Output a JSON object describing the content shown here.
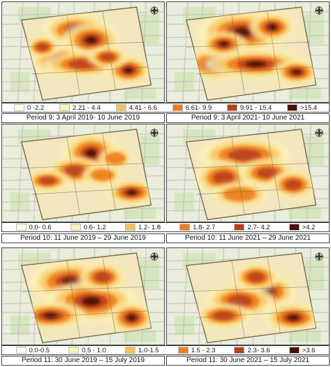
{
  "panels": [
    {
      "caption": "Period 9: 3 April 2019- 10 June 2019",
      "row": 0,
      "col": 0,
      "intensity": 0.9,
      "hotspots": [
        [
          0.46,
          0.28,
          0.12,
          0.09,
          0.95
        ],
        [
          0.55,
          0.38,
          0.1,
          0.1,
          0.85
        ],
        [
          0.35,
          0.58,
          0.1,
          0.08,
          0.8
        ],
        [
          0.5,
          0.62,
          0.14,
          0.07,
          0.75
        ],
        [
          0.78,
          0.68,
          0.08,
          0.08,
          1.0
        ],
        [
          0.25,
          0.45,
          0.06,
          0.06,
          0.6
        ],
        [
          0.65,
          0.55,
          0.07,
          0.06,
          0.7
        ]
      ]
    },
    {
      "caption": "Period 9: 3 April 2021- 10 June 2021",
      "row": 0,
      "col": 1,
      "intensity": 1.0,
      "hotspots": [
        [
          0.47,
          0.3,
          0.16,
          0.12,
          1.0
        ],
        [
          0.3,
          0.62,
          0.12,
          0.09,
          0.95
        ],
        [
          0.55,
          0.62,
          0.18,
          0.08,
          0.9
        ],
        [
          0.8,
          0.7,
          0.08,
          0.07,
          1.0
        ],
        [
          0.35,
          0.42,
          0.08,
          0.07,
          0.8
        ],
        [
          0.65,
          0.25,
          0.08,
          0.08,
          0.85
        ]
      ]
    },
    {
      "caption": "Period 10: 11 June 2019 – 29 June 2019",
      "row": 1,
      "col": 0,
      "intensity": 0.8,
      "hotspots": [
        [
          0.55,
          0.3,
          0.1,
          0.12,
          0.95
        ],
        [
          0.45,
          0.48,
          0.1,
          0.08,
          0.7
        ],
        [
          0.28,
          0.58,
          0.08,
          0.06,
          0.7
        ],
        [
          0.8,
          0.7,
          0.09,
          0.07,
          1.0
        ],
        [
          0.62,
          0.52,
          0.07,
          0.06,
          0.6
        ],
        [
          0.7,
          0.35,
          0.06,
          0.06,
          0.5
        ]
      ]
    },
    {
      "caption": "Period 10: 11 June 2021 – 29 June 2021",
      "row": 1,
      "col": 1,
      "intensity": 0.75,
      "hotspots": [
        [
          0.48,
          0.32,
          0.16,
          0.1,
          0.8
        ],
        [
          0.35,
          0.55,
          0.1,
          0.1,
          0.75
        ],
        [
          0.62,
          0.5,
          0.1,
          0.08,
          0.85
        ],
        [
          0.78,
          0.62,
          0.08,
          0.08,
          0.75
        ],
        [
          0.45,
          0.72,
          0.1,
          0.07,
          0.6
        ]
      ]
    },
    {
      "caption": "Period 11: 30 June 2019 – 15 July 2019",
      "row": 2,
      "col": 0,
      "intensity": 0.85,
      "hotspots": [
        [
          0.42,
          0.35,
          0.14,
          0.12,
          0.9
        ],
        [
          0.55,
          0.55,
          0.16,
          0.12,
          0.95
        ],
        [
          0.3,
          0.7,
          0.12,
          0.08,
          0.9
        ],
        [
          0.8,
          0.72,
          0.08,
          0.09,
          0.95
        ],
        [
          0.62,
          0.3,
          0.08,
          0.08,
          0.75
        ]
      ]
    },
    {
      "caption": "Period 11: 30 June 2021 – 15 July 2021",
      "row": 2,
      "col": 1,
      "intensity": 0.85,
      "hotspots": [
        [
          0.62,
          0.45,
          0.1,
          0.1,
          0.95
        ],
        [
          0.45,
          0.55,
          0.12,
          0.1,
          0.75
        ],
        [
          0.35,
          0.7,
          0.1,
          0.07,
          0.7
        ],
        [
          0.78,
          0.72,
          0.1,
          0.08,
          0.9
        ],
        [
          0.55,
          0.3,
          0.08,
          0.08,
          0.6
        ]
      ]
    }
  ],
  "legends": [
    {
      "items": [
        {
          "label": "0 -2.2",
          "color": "#fffde6"
        },
        {
          "label": "2.21 - 4.4",
          "color": "#fcf1b8"
        },
        {
          "label": "4.41 - 6.6",
          "color": "#f8c25a"
        },
        {
          "label": "6.61- 9.9",
          "color": "#ee7d1e"
        },
        {
          "label": "9.91 - 15.4",
          "color": "#b9401a"
        },
        {
          "label": ">15.4",
          "color": "#4a0f05"
        }
      ]
    },
    {
      "items": [
        {
          "label": "0.0- 0.6",
          "color": "#fffde6"
        },
        {
          "label": "0.6- 1.2",
          "color": "#fcf1b8"
        },
        {
          "label": "1.2- 1.8",
          "color": "#f8c25a"
        },
        {
          "label": "1.8- 2.7",
          "color": "#ee7d1e"
        },
        {
          "label": "2.7- 4.2",
          "color": "#b9401a"
        },
        {
          "label": ">4.2",
          "color": "#4a0f05"
        }
      ]
    },
    {
      "items": [
        {
          "label": "0.0-0.5",
          "color": "#fffde6"
        },
        {
          "label": "0.5 - 1.0",
          "color": "#fcf1b8"
        },
        {
          "label": "1.0-1.5",
          "color": "#f8c25a"
        },
        {
          "label": "1.5 - 2.3",
          "color": "#ee7d1e"
        },
        {
          "label": "2.3- 3.6",
          "color": "#b9401a"
        },
        {
          "label": ">3.6",
          "color": "#4a0f05"
        }
      ]
    }
  ],
  "north_arrow_icon": "compass-icon",
  "colors": {
    "basemap": "#e8eddc",
    "roads": "#c9b4b4",
    "parks": "#cfe3b8",
    "boundary": "#7a6b4a",
    "district": "#f3e7bf"
  }
}
